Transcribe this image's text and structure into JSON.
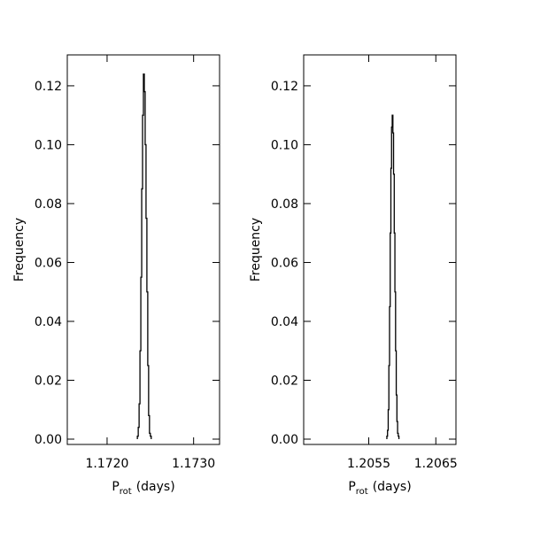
{
  "chart_data": [
    {
      "type": "histogram",
      "color": "#000000",
      "ylabel": "Frequency",
      "xlabel": "P",
      "xlabel_sub": "rot",
      "xlabel_unit": "(days)",
      "bins": [
        1.17235,
        1.17236,
        1.17237,
        1.17238,
        1.17239,
        1.1724,
        1.17241,
        1.17242,
        1.17243,
        1.17244,
        1.17245,
        1.17246,
        1.17247,
        1.17248,
        1.17249,
        1.1725,
        1.17251
      ],
      "values": [
        0.001,
        0.004,
        0.012,
        0.03,
        0.055,
        0.085,
        0.11,
        0.124,
        0.118,
        0.1,
        0.075,
        0.05,
        0.025,
        0.008,
        0.002,
        0.001
      ],
      "xlim": [
        1.17154,
        1.1733
      ],
      "ylim": [
        -0.0018,
        0.1305
      ],
      "xticks": [
        {
          "value": 1.172,
          "label": "1.1720"
        },
        {
          "value": 1.173,
          "label": "1.1730"
        }
      ],
      "yticks": [
        {
          "value": 0,
          "label": "0.00"
        },
        {
          "value": 0.02,
          "label": "0.02"
        },
        {
          "value": 0.04,
          "label": "0.04"
        },
        {
          "value": 0.06,
          "label": "0.06"
        },
        {
          "value": 0.08,
          "label": "0.08"
        },
        {
          "value": 0.1,
          "label": "0.10"
        },
        {
          "value": 0.12,
          "label": "0.12"
        }
      ]
    },
    {
      "type": "histogram",
      "color": "#000000",
      "ylabel": "Frequency",
      "xlabel": "P",
      "xlabel_sub": "rot",
      "xlabel_unit": "(days)",
      "bins": [
        1.20577,
        1.20578,
        1.20579,
        1.2058,
        1.20581,
        1.20582,
        1.20583,
        1.20584,
        1.20585,
        1.20586,
        1.20587,
        1.20588,
        1.20589,
        1.2059,
        1.20591,
        1.20592,
        1.20593,
        1.20594,
        1.20595
      ],
      "values": [
        0.001,
        0.003,
        0.01,
        0.025,
        0.045,
        0.07,
        0.092,
        0.106,
        0.11,
        0.104,
        0.09,
        0.07,
        0.05,
        0.03,
        0.015,
        0.006,
        0.002,
        0.001
      ],
      "xlim": [
        1.20453,
        1.2068
      ],
      "ylim": [
        -0.0018,
        0.1305
      ],
      "xticks": [
        1.2055,
        1.2065
      ],
      "yticks": [
        {
          "value": 0,
          "label": "0.00"
        },
        {
          "value": 0.02,
          "label": "0.02"
        },
        {
          "value": 0.04,
          "label": "0.04"
        },
        {
          "value": 0.06,
          "label": "0.06"
        },
        {
          "value": 0.08,
          "label": "0.08"
        },
        {
          "value": 0.1,
          "label": "0.10"
        },
        {
          "value": 0.12,
          "label": "0.12"
        }
      ]
    }
  ]
}
